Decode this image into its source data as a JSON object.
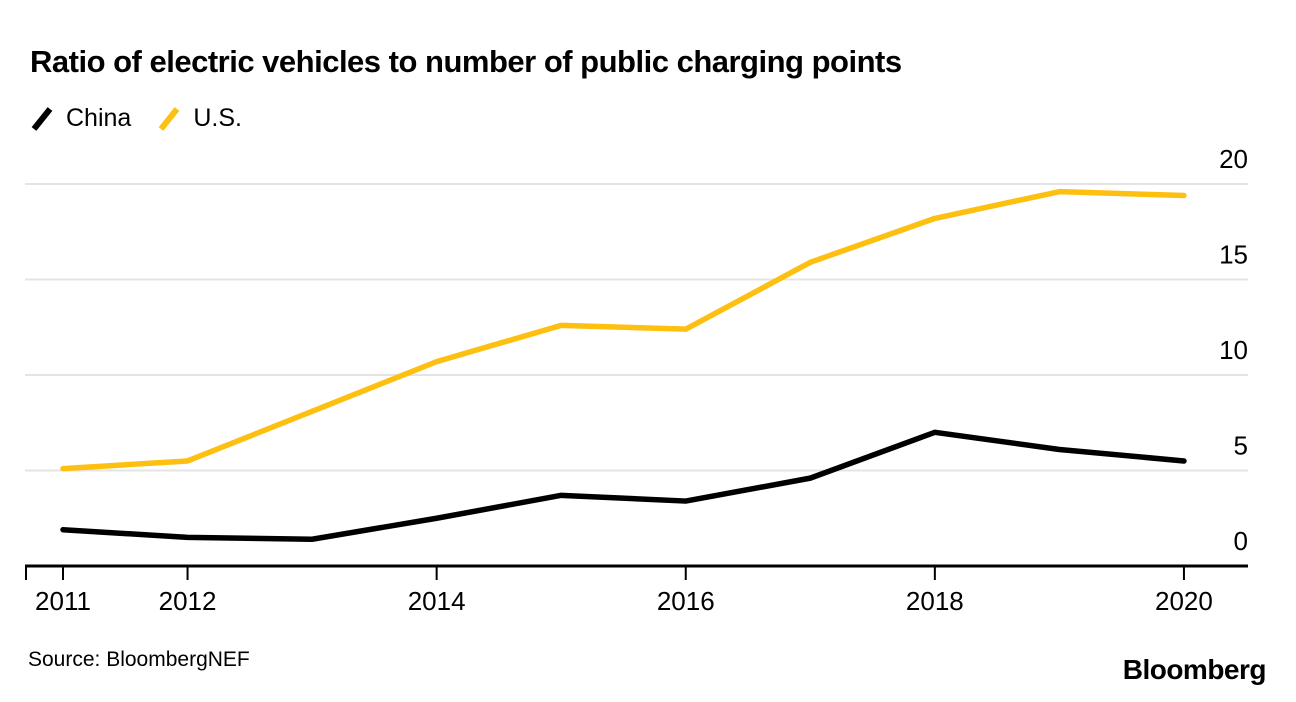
{
  "header": {
    "title": "Ratio of electric vehicles to number of public charging points"
  },
  "legend": {
    "items": [
      {
        "label": "China",
        "color": "#000000"
      },
      {
        "label": "U.S.",
        "color": "#FDC010"
      }
    ]
  },
  "footer": {
    "source": "Source: BloombergNEF",
    "logo": "Bloomberg"
  },
  "chart_data": {
    "type": "line",
    "title": "Ratio of electric vehicles to number of public charging points",
    "x": [
      2011,
      2012,
      2013,
      2014,
      2015,
      2016,
      2017,
      2018,
      2019,
      2020
    ],
    "series": [
      {
        "name": "China",
        "color": "#000000",
        "values": [
          1.9,
          1.5,
          1.4,
          2.5,
          3.7,
          3.4,
          4.6,
          7.0,
          6.1,
          5.5
        ]
      },
      {
        "name": "U.S.",
        "color": "#FDC010",
        "values": [
          5.1,
          5.5,
          8.1,
          10.7,
          12.6,
          12.4,
          15.9,
          18.2,
          19.6,
          19.4
        ]
      }
    ],
    "xlabel": "",
    "ylabel": "",
    "ylim": [
      0,
      20
    ],
    "yticks": [
      0,
      5,
      10,
      15,
      20
    ],
    "xticks": [
      2011,
      2012,
      2014,
      2016,
      2018,
      2020
    ],
    "grid": "horizontal-light-gray",
    "gridline_color": "#e4e4e4",
    "axis_color": "#000000",
    "legend_position": "top-left",
    "ytick_label_side": "right"
  }
}
